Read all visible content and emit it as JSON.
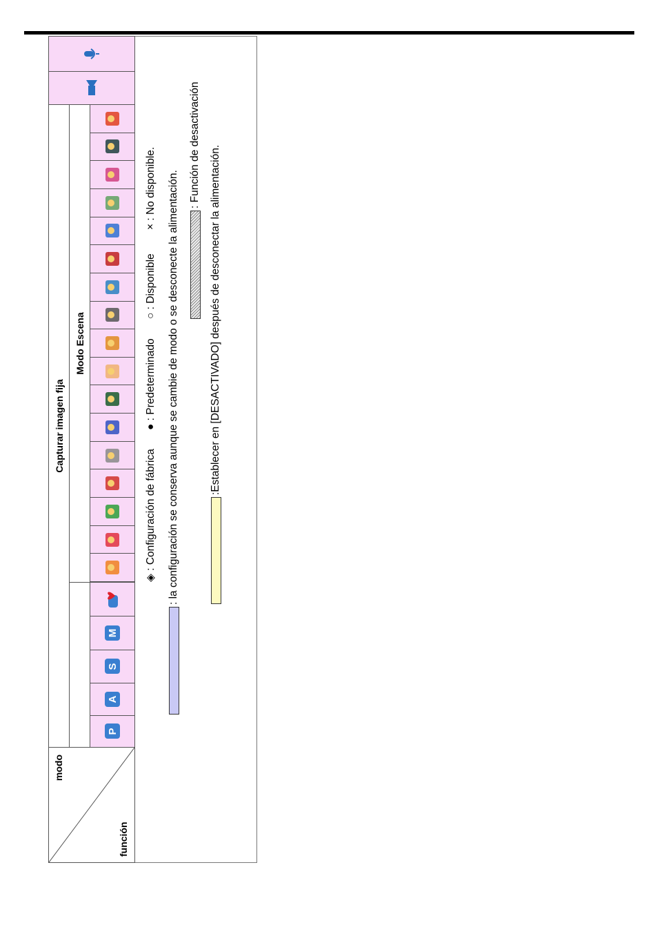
{
  "header": {
    "mode_label": "modo",
    "function_label": "función",
    "group_title": "Capturar imagen fija",
    "scene_title": "Modo Escena"
  },
  "modes": [
    "P",
    "A",
    "S",
    "M"
  ],
  "legend": {
    "line1": [
      "◈ : Configuración de fábrica",
      "● : Predeterminado",
      "○ : Disponible",
      "× : No disponible."
    ],
    "kept": ": la configuración se conserva aunque se cambie de modo o se desconecte la alimentación.",
    "off_function": ": Función de desactivación",
    "set_off": ":Establecer en [DESACTIVADO] después de desconectar la alimentación."
  }
}
